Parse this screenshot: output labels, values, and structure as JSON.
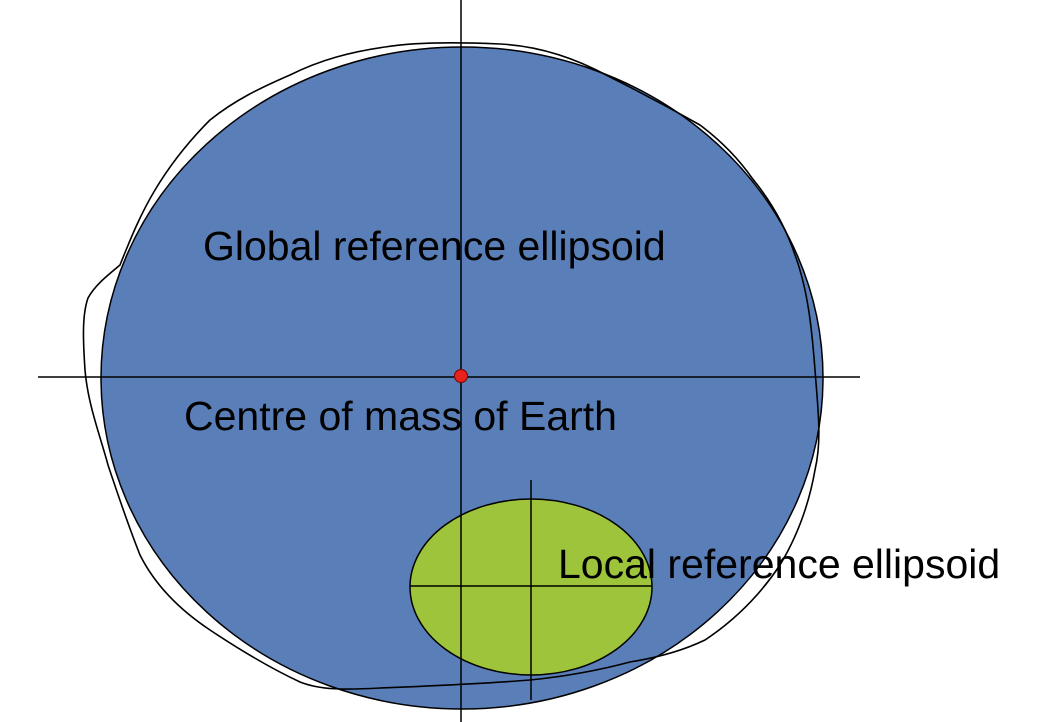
{
  "labels": {
    "global_ellipsoid": "Global reference ellipsoid",
    "centre_of_mass": "Centre of mass of Earth",
    "local_ellipsoid": "Local reference ellipsoid"
  },
  "colors": {
    "global_ellipsoid_fill": "#5a7fb8",
    "local_ellipsoid_fill": "#9dc43a",
    "centre_point": "#e8221d",
    "outline": "#000000",
    "background": "#ffffff"
  }
}
